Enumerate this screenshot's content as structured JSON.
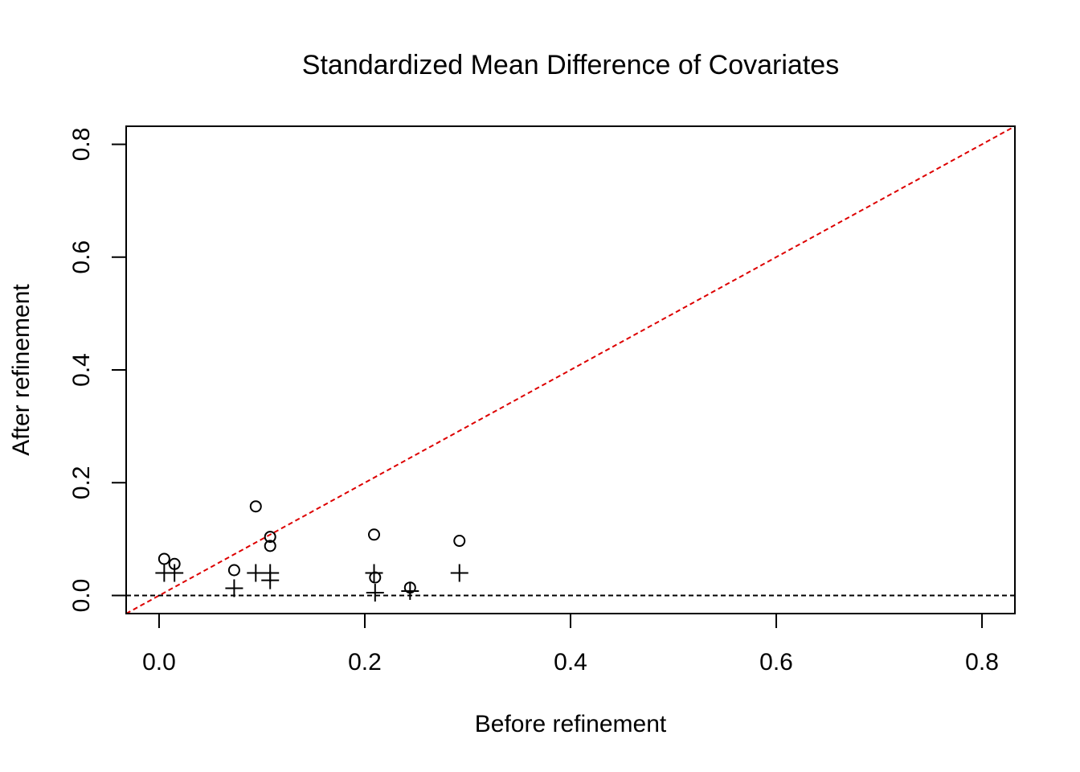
{
  "chart_data": {
    "type": "scatter",
    "title": "Standardized Mean Difference of Covariates",
    "xlabel": "Before refinement",
    "ylabel": "After refinement",
    "xlim": [
      -0.032,
      0.832
    ],
    "ylim": [
      -0.032,
      0.832
    ],
    "x_ticks": [
      "0.0",
      "0.2",
      "0.4",
      "0.6",
      "0.8"
    ],
    "y_ticks": [
      "0.0",
      "0.2",
      "0.4",
      "0.6",
      "0.8"
    ],
    "x_tick_values": [
      0,
      0.2,
      0.4,
      0.6,
      0.8
    ],
    "y_tick_values": [
      0,
      0.2,
      0.4,
      0.6,
      0.8
    ],
    "grid": false,
    "series": [
      {
        "marker": "circle",
        "points": [
          [
            0.005,
            0.065
          ],
          [
            0.015,
            0.056
          ],
          [
            0.073,
            0.045
          ],
          [
            0.094,
            0.158
          ],
          [
            0.108,
            0.104
          ],
          [
            0.108,
            0.088
          ],
          [
            0.209,
            0.108
          ],
          [
            0.21,
            0.032
          ],
          [
            0.244,
            0.014
          ],
          [
            0.292,
            0.097
          ]
        ]
      },
      {
        "marker": "plus",
        "points": [
          [
            0.005,
            0.04
          ],
          [
            0.015,
            0.04
          ],
          [
            0.073,
            0.013
          ],
          [
            0.094,
            0.04
          ],
          [
            0.108,
            0.04
          ],
          [
            0.108,
            0.027
          ],
          [
            0.209,
            0.04
          ],
          [
            0.21,
            0.005
          ],
          [
            0.244,
            0.008
          ],
          [
            0.292,
            0.04
          ]
        ]
      }
    ],
    "reference_lines": [
      {
        "kind": "diagonal",
        "slope": 1,
        "intercept": 0,
        "style": "dashed",
        "color": "#dd0000"
      },
      {
        "kind": "horizontal",
        "y": 0,
        "style": "dashed",
        "color": "#000000"
      }
    ]
  }
}
